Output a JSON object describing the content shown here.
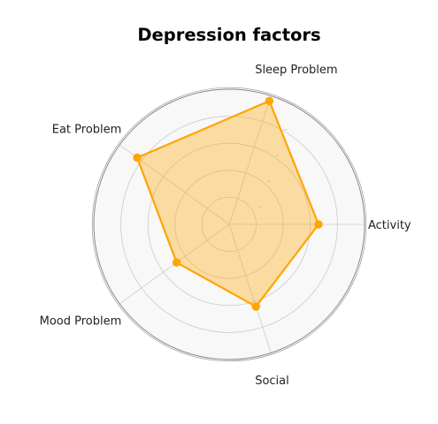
{
  "chart_data": {
    "type": "radar",
    "title": "Depression factors",
    "categories": [
      "Sleep Problem",
      "Activity",
      "Social",
      "Mood Problem",
      "Eat Problem"
    ],
    "series": [
      {
        "values": [
          0.96,
          0.66,
          0.64,
          0.48,
          0.84
        ]
      }
    ],
    "rlim": [
      0,
      1
    ],
    "rgrid": [
      0.2,
      0.4,
      0.6,
      0.8,
      1.0
    ],
    "grid": true,
    "legend": "none",
    "colors": {
      "series_line": "#FFA500",
      "series_fill": "#FFA500",
      "plot_background": "#F8F8F8",
      "grid": "#CCCCCC",
      "frame": "#888888"
    }
  }
}
